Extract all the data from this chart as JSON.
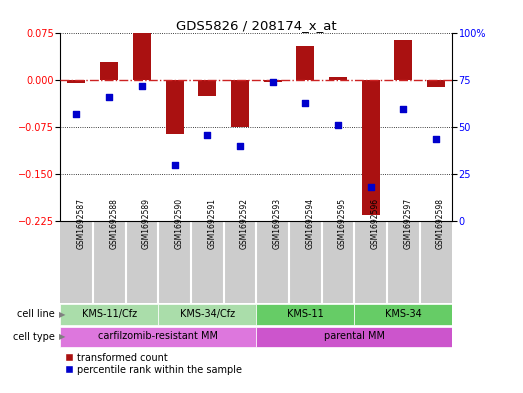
{
  "title": "GDS5826 / 208174_x_at",
  "samples": [
    "GSM1692587",
    "GSM1692588",
    "GSM1692589",
    "GSM1692590",
    "GSM1692591",
    "GSM1692592",
    "GSM1692593",
    "GSM1692594",
    "GSM1692595",
    "GSM1692596",
    "GSM1692597",
    "GSM1692598"
  ],
  "transformed_count": [
    -0.005,
    0.03,
    0.075,
    -0.085,
    -0.025,
    -0.075,
    -0.002,
    0.055,
    0.005,
    -0.215,
    0.065,
    -0.01
  ],
  "percentile_rank": [
    57,
    66,
    72,
    30,
    46,
    40,
    74,
    63,
    51,
    18,
    60,
    44
  ],
  "ylim_left": [
    -0.225,
    0.075
  ],
  "ylim_right": [
    0,
    100
  ],
  "yticks_left": [
    0.075,
    0,
    -0.075,
    -0.15,
    -0.225
  ],
  "yticks_right": [
    100,
    75,
    50,
    25,
    0
  ],
  "bar_color": "#aa1111",
  "scatter_color": "#0000cc",
  "ref_line_color": "#cc2222",
  "cell_line_groups": [
    {
      "label": "KMS-11/Cfz",
      "start": 0,
      "end": 3,
      "color": "#aaddaa"
    },
    {
      "label": "KMS-34/Cfz",
      "start": 3,
      "end": 6,
      "color": "#aaddaa"
    },
    {
      "label": "KMS-11",
      "start": 6,
      "end": 9,
      "color": "#66cc66"
    },
    {
      "label": "KMS-34",
      "start": 9,
      "end": 12,
      "color": "#66cc66"
    }
  ],
  "cell_type_groups": [
    {
      "label": "carfilzomib-resistant MM",
      "start": 0,
      "end": 6,
      "color": "#dd77dd"
    },
    {
      "label": "parental MM",
      "start": 6,
      "end": 12,
      "color": "#cc55cc"
    }
  ],
  "cell_line_label": "cell line",
  "cell_type_label": "cell type",
  "legend_bar": "transformed count",
  "legend_scatter": "percentile rank within the sample",
  "bg_color": "#ffffff",
  "sample_bg": "#cccccc"
}
